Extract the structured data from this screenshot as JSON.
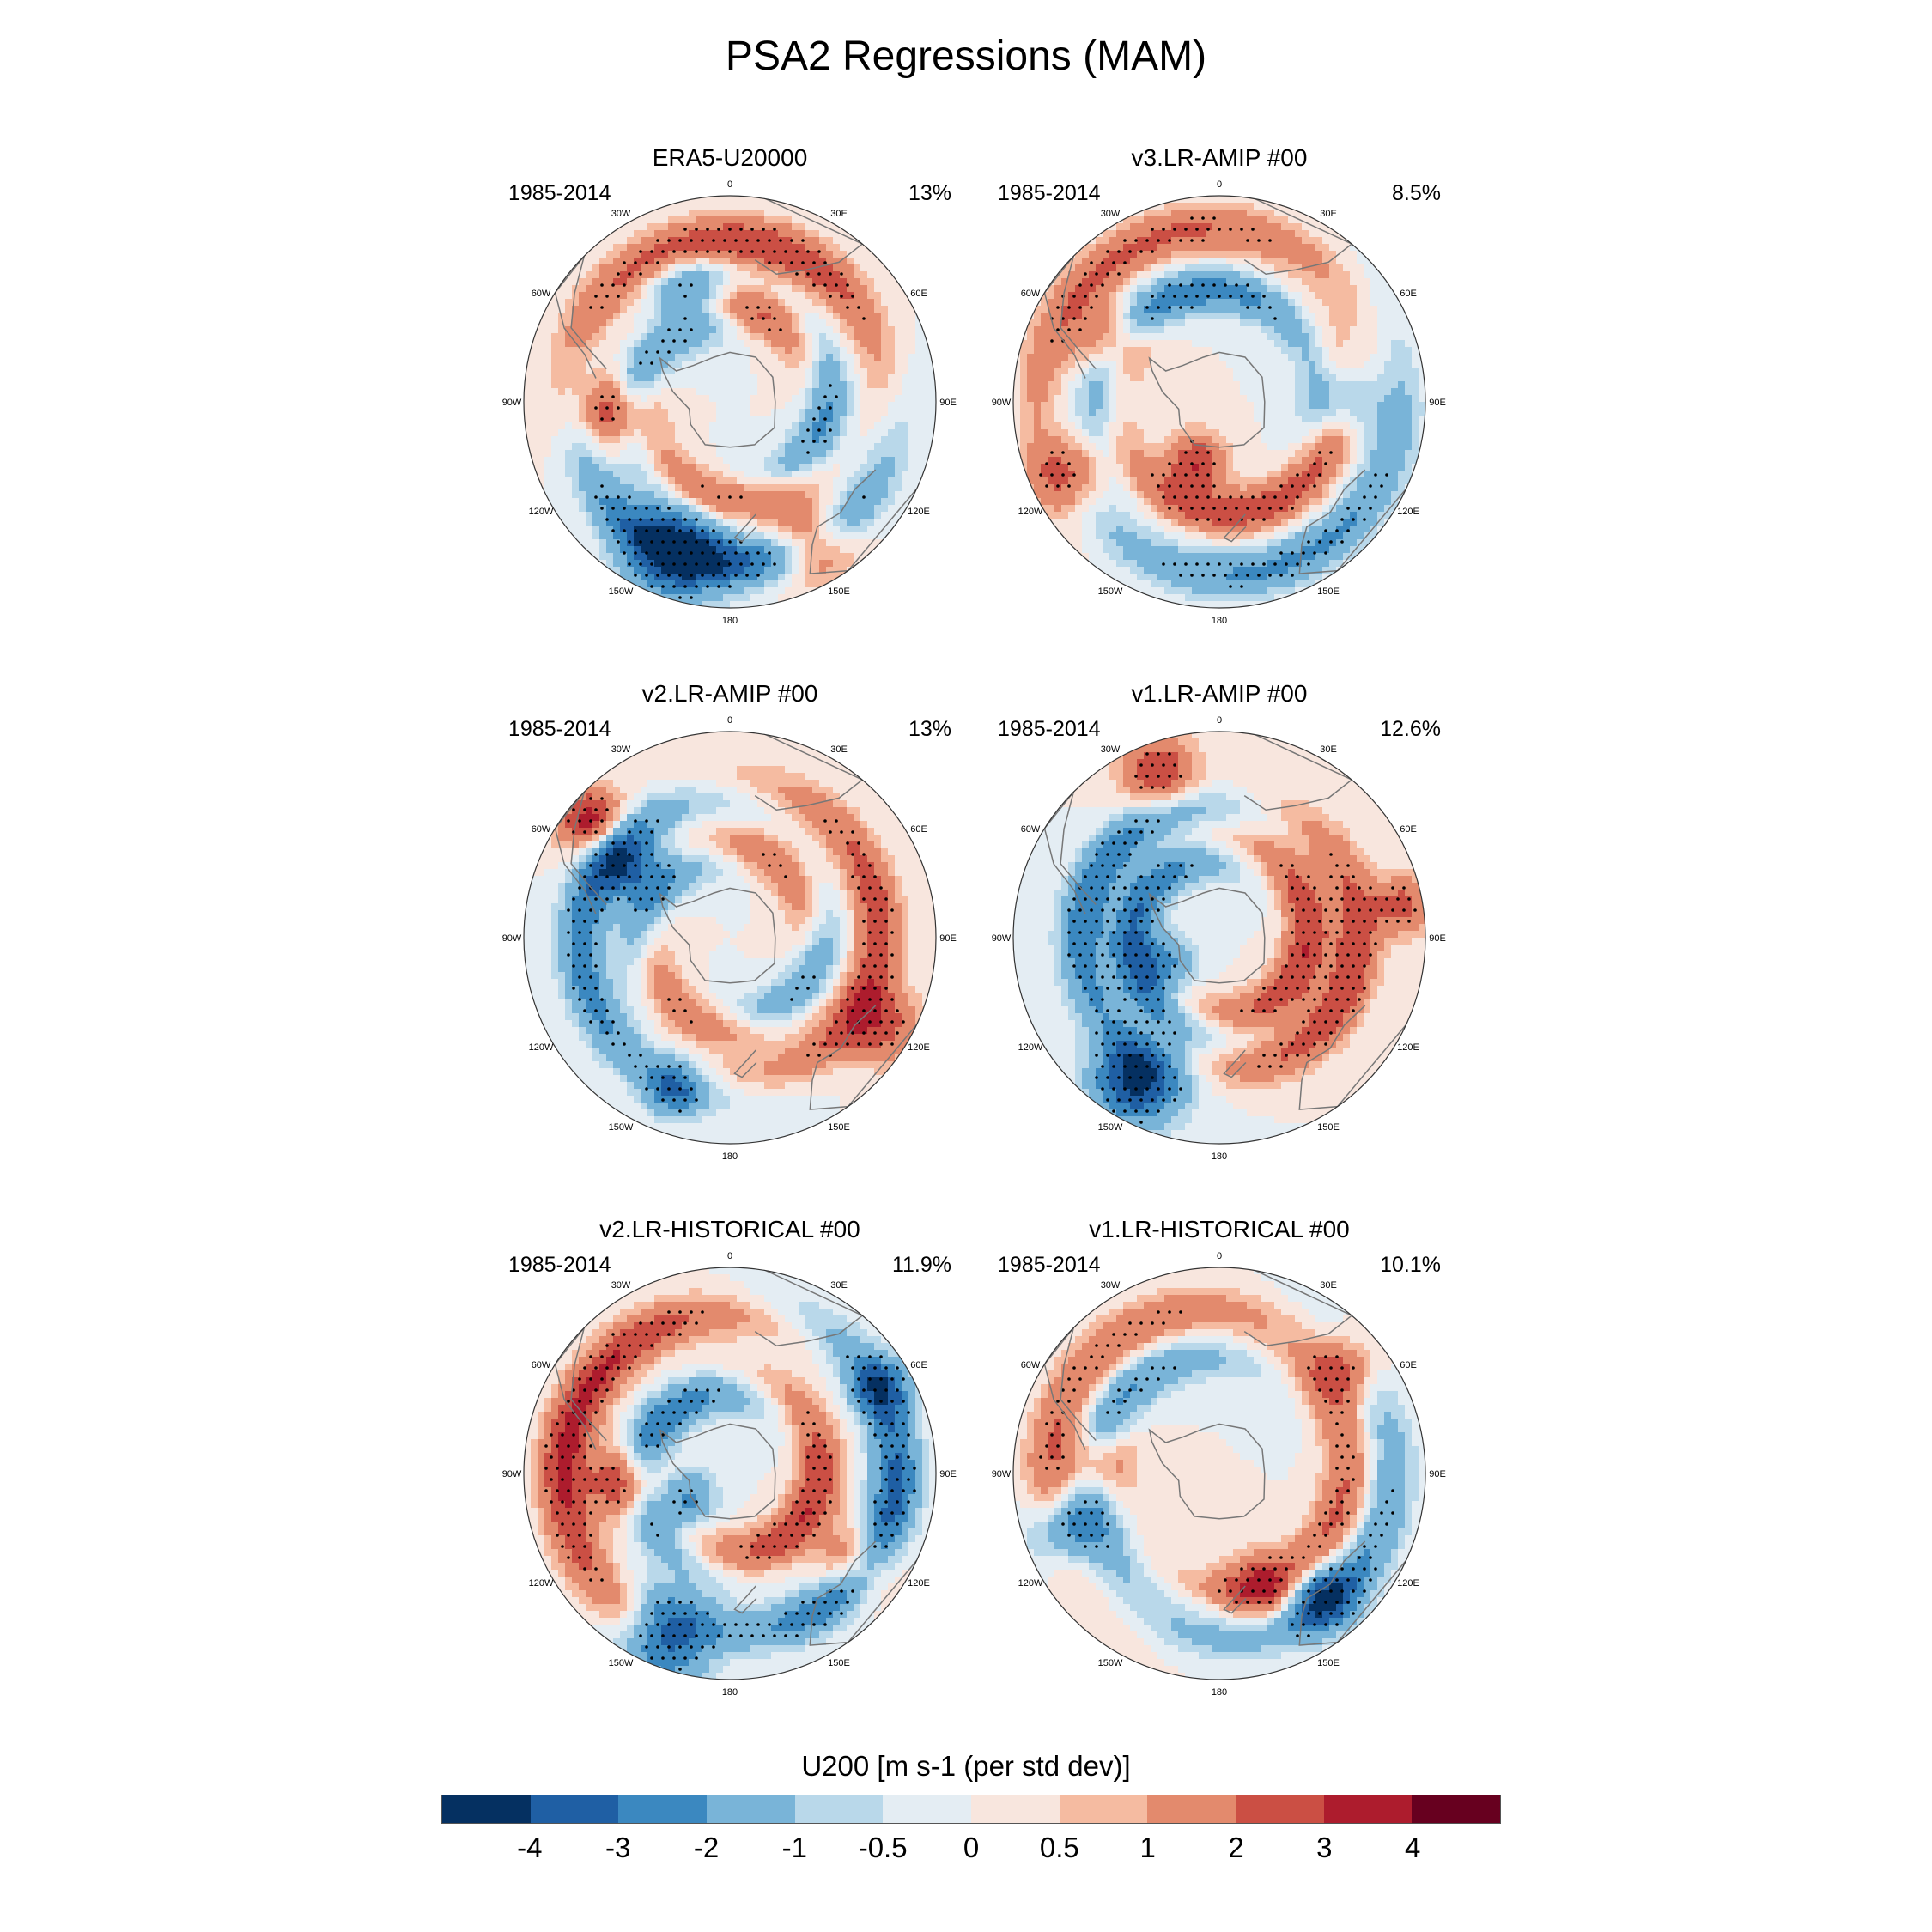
{
  "title": "PSA2 Regressions (MAM)",
  "panels": [
    {
      "title": "ERA5-U20000",
      "years": "1985-2014",
      "pct": "13%",
      "field": [
        {
          "type": "band",
          "r": 0.78,
          "phase": 95,
          "k": 1,
          "tw": 0.35,
          "amp": 3.0
        },
        {
          "type": "band",
          "r": 0.46,
          "phase": 200,
          "k": 2,
          "tw": 1.1,
          "amp": 2.2
        },
        {
          "type": "blob",
          "lon": -160,
          "r": 0.78,
          "amp": -3.5,
          "s": 0.17
        },
        {
          "type": "blob",
          "lon": -95,
          "r": 0.55,
          "amp": 3.2,
          "s": 0.12
        },
        {
          "type": "blob",
          "lon": -20,
          "r": 0.55,
          "amp": -2.8,
          "s": 0.14
        },
        {
          "type": "blob",
          "lon": 150,
          "r": 0.78,
          "amp": 3.2,
          "s": 0.13
        }
      ]
    },
    {
      "title": "v3.LR-AMIP  #00",
      "years": "1985-2014",
      "pct": "8.5%",
      "field": [
        {
          "type": "band",
          "r": 0.55,
          "phase": 150,
          "k": 1,
          "tw": 0.9,
          "amp": -2.6
        },
        {
          "type": "band",
          "r": 0.85,
          "phase": -60,
          "k": 1,
          "tw": 0.5,
          "amp": -2.2
        },
        {
          "type": "blob",
          "lon": -60,
          "r": 0.6,
          "amp": 2.6,
          "s": 0.12
        },
        {
          "type": "blob",
          "lon": -115,
          "r": 0.82,
          "amp": 2.4,
          "s": 0.12
        },
        {
          "type": "blob",
          "lon": -160,
          "r": 0.32,
          "amp": 3.0,
          "s": 0.1
        },
        {
          "type": "blob",
          "lon": 90,
          "r": 0.6,
          "amp": -2.0,
          "s": 0.12
        }
      ]
    },
    {
      "title": "v2.LR-AMIP  #00",
      "years": "1985-2014",
      "pct": "13%",
      "field": [
        {
          "type": "band",
          "r": 0.72,
          "phase": -120,
          "k": 1,
          "tw": 0.6,
          "amp": 2.6
        },
        {
          "type": "band",
          "r": 0.42,
          "phase": 60,
          "k": 2,
          "tw": 1.2,
          "amp": -1.8
        },
        {
          "type": "blob",
          "lon": -50,
          "r": 0.88,
          "amp": 3.6,
          "s": 0.11
        },
        {
          "type": "blob",
          "lon": -55,
          "r": 0.62,
          "amp": -3.2,
          "s": 0.12
        },
        {
          "type": "blob",
          "lon": -160,
          "r": 0.78,
          "amp": -2.4,
          "s": 0.1
        },
        {
          "type": "blob",
          "lon": 120,
          "r": 0.85,
          "amp": 2.4,
          "s": 0.13
        }
      ]
    },
    {
      "title": "v1.LR-AMIP  #00",
      "years": "1985-2014",
      "pct": "12.6%",
      "field": [
        {
          "type": "band",
          "r": 0.66,
          "phase": 20,
          "k": 1,
          "tw": 0.4,
          "amp": -2.8
        },
        {
          "type": "band",
          "r": 0.42,
          "phase": -130,
          "k": 1,
          "tw": 0.9,
          "amp": 3.0
        },
        {
          "type": "blob",
          "lon": -150,
          "r": 0.8,
          "amp": -4.3,
          "s": 0.15
        },
        {
          "type": "blob",
          "lon": -20,
          "r": 0.86,
          "amp": 3.0,
          "s": 0.12
        },
        {
          "type": "blob",
          "lon": 80,
          "r": 0.9,
          "amp": 2.4,
          "s": 0.1
        },
        {
          "type": "blob",
          "lon": -115,
          "r": 0.3,
          "amp": -2.4,
          "s": 0.1
        }
      ]
    },
    {
      "title": "v2.LR-HISTORICAL  #00",
      "years": "1985-2014",
      "pct": "11.9%",
      "field": [
        {
          "type": "band",
          "r": 0.8,
          "phase": -140,
          "k": 1,
          "tw": 0.4,
          "amp": -3.4
        },
        {
          "type": "band",
          "r": 0.42,
          "phase": -130,
          "k": 1,
          "tw": 0.8,
          "amp": 3.0
        },
        {
          "type": "blob",
          "lon": -160,
          "r": 0.85,
          "amp": -3.6,
          "s": 0.15
        },
        {
          "type": "blob",
          "lon": -95,
          "r": 0.5,
          "amp": 3.6,
          "s": 0.12
        },
        {
          "type": "blob",
          "lon": -120,
          "r": 0.25,
          "amp": -2.4,
          "s": 0.1
        },
        {
          "type": "blob",
          "lon": 125,
          "r": 0.75,
          "amp": 2.6,
          "s": 0.12
        },
        {
          "type": "blob",
          "lon": 60,
          "r": 0.85,
          "amp": -2.4,
          "s": 0.1
        }
      ]
    },
    {
      "title": "v1.LR-HISTORICAL  #00",
      "years": "1985-2014",
      "pct": "10.1%",
      "field": [
        {
          "type": "band",
          "r": 0.6,
          "phase": -100,
          "k": 1,
          "tw": 0.7,
          "amp": 2.2
        },
        {
          "type": "band",
          "r": 0.82,
          "phase": -90,
          "k": 1,
          "tw": 0.5,
          "amp": -2.0
        },
        {
          "type": "blob",
          "lon": -85,
          "r": 0.6,
          "amp": 2.6,
          "s": 0.12
        },
        {
          "type": "blob",
          "lon": -110,
          "r": 0.8,
          "amp": -2.6,
          "s": 0.12
        },
        {
          "type": "blob",
          "lon": 140,
          "r": 0.78,
          "amp": -3.0,
          "s": 0.12
        },
        {
          "type": "blob",
          "lon": 160,
          "r": 0.6,
          "amp": 2.4,
          "s": 0.12
        },
        {
          "type": "blob",
          "lon": 50,
          "r": 0.78,
          "amp": 2.4,
          "s": 0.11
        }
      ]
    }
  ],
  "lon_labels": [
    {
      "label": "0",
      "lon": 0
    },
    {
      "label": "30E",
      "lon": 30
    },
    {
      "label": "60E",
      "lon": 60
    },
    {
      "label": "90E",
      "lon": 90
    },
    {
      "label": "120E",
      "lon": 120
    },
    {
      "label": "150E",
      "lon": 150
    },
    {
      "label": "180",
      "lon": 180
    },
    {
      "label": "150W",
      "lon": -150
    },
    {
      "label": "120W",
      "lon": -120
    },
    {
      "label": "90W",
      "lon": -90
    },
    {
      "label": "60W",
      "lon": -60
    },
    {
      "label": "30W",
      "lon": -30
    }
  ],
  "colorbar": {
    "label": "U200 [m s-1 (per std dev)]",
    "ticks": [
      "-4",
      "-3",
      "-2",
      "-1",
      "-0.5",
      "0",
      "0.5",
      "1",
      "2",
      "3",
      "4"
    ],
    "levels": [
      -4,
      -3,
      -2,
      -1,
      -0.5,
      0,
      0.5,
      1,
      2,
      3,
      4
    ],
    "colors": [
      "#053061",
      "#1f5fa4",
      "#3b88c0",
      "#79b4d8",
      "#b9d8ea",
      "#e4edf3",
      "#f8e6de",
      "#f5bba1",
      "#e38a6d",
      "#cb4f44",
      "#ad1c2d",
      "#67001f"
    ]
  }
}
